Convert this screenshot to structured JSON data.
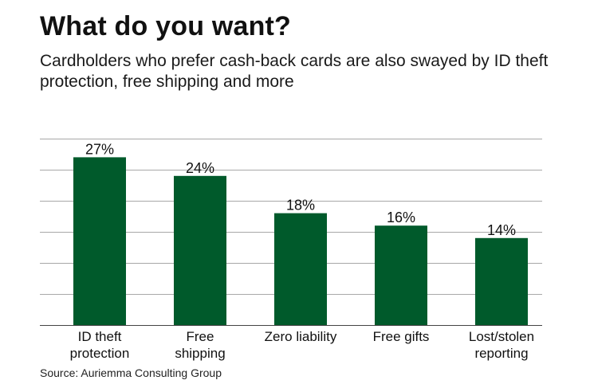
{
  "title": "What do you want?",
  "subtitle": "Cardholders who prefer cash-back cards are also swayed by ID theft protection, free shipping and more",
  "source": "Source: Auriemma Consulting Group",
  "colors": {
    "bar": "#005a2b",
    "grid": "#a8a8a8"
  },
  "chart_data": {
    "type": "bar",
    "title": "",
    "xlabel": "",
    "ylabel": "",
    "categories": [
      [
        "ID theft",
        "protection"
      ],
      [
        "Free",
        "shipping"
      ],
      [
        "Zero liability"
      ],
      [
        "Free gifts"
      ],
      [
        "Lost/stolen",
        "reporting"
      ]
    ],
    "values": [
      27,
      24,
      18,
      16,
      14
    ],
    "value_labels": [
      "27%",
      "24%",
      "18%",
      "16%",
      "14%"
    ],
    "ylim": [
      0,
      30
    ],
    "grid": true,
    "legend": "none"
  }
}
